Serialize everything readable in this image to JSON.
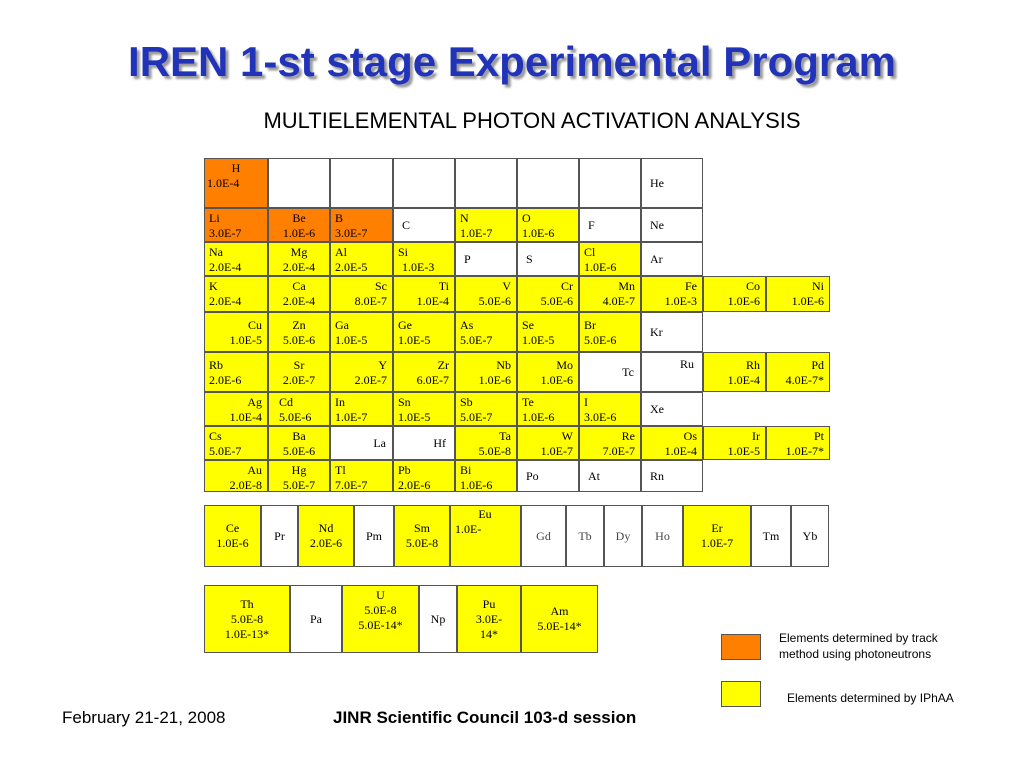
{
  "title": "IREN 1-st stage Experimental Program",
  "subtitle": "MULTIELEMENTAL PHOTON ACTIVATION ANALYSIS",
  "colors": {
    "track": "#ff8000",
    "iphaa": "#ffff00",
    "title": "#2133b8"
  },
  "elements": {
    "H": {
      "symbol": "H",
      "value": "1.0E-4"
    },
    "He": {
      "symbol": "He",
      "value": ""
    },
    "Li": {
      "symbol": "Li",
      "value": "3.0E-7"
    },
    "Be": {
      "symbol": "Be",
      "value": "1.0E-6"
    },
    "B": {
      "symbol": "B",
      "value": "3.0E-7"
    },
    "C": {
      "symbol": "C",
      "value": ""
    },
    "N": {
      "symbol": "N",
      "value": "1.0E-7"
    },
    "O": {
      "symbol": "O",
      "value": "1.0E-6"
    },
    "F": {
      "symbol": "F",
      "value": ""
    },
    "Ne": {
      "symbol": "Ne",
      "value": ""
    },
    "Na": {
      "symbol": "Na",
      "value": "2.0E-4"
    },
    "Mg": {
      "symbol": "Mg",
      "value": "2.0E-4"
    },
    "Al": {
      "symbol": "Al",
      "value": "2.0E-5"
    },
    "Si": {
      "symbol": "Si",
      "value": "1.0E-3"
    },
    "P": {
      "symbol": "P",
      "value": ""
    },
    "S": {
      "symbol": "S",
      "value": ""
    },
    "Cl": {
      "symbol": "Cl",
      "value": "1.0E-6"
    },
    "Ar": {
      "symbol": "Ar",
      "value": ""
    },
    "K": {
      "symbol": "K",
      "value": "2.0E-4"
    },
    "Ca": {
      "symbol": "Ca",
      "value": "2.0E-4"
    },
    "Sc": {
      "symbol": "Sc",
      "value": "8.0E-7"
    },
    "Ti": {
      "symbol": "Ti",
      "value": "1.0E-4"
    },
    "V": {
      "symbol": "V",
      "value": "5.0E-6"
    },
    "Cr": {
      "symbol": "Cr",
      "value": "5.0E-6"
    },
    "Mn": {
      "symbol": "Mn",
      "value": "4.0E-7"
    },
    "Fe": {
      "symbol": "Fe",
      "value": "1.0E-3"
    },
    "Co": {
      "symbol": "Co",
      "value": "1.0E-6"
    },
    "Ni": {
      "symbol": "Ni",
      "value": "1.0E-6"
    },
    "Cu": {
      "symbol": "Cu",
      "value": "1.0E-5"
    },
    "Zn": {
      "symbol": "Zn",
      "value": "5.0E-6"
    },
    "Ga": {
      "symbol": "Ga",
      "value": "1.0E-5"
    },
    "Ge": {
      "symbol": "Ge",
      "value": "1.0E-5"
    },
    "As": {
      "symbol": "As",
      "value": "5.0E-7"
    },
    "Se": {
      "symbol": "Se",
      "value": "1.0E-5"
    },
    "Br": {
      "symbol": "Br",
      "value": "5.0E-6"
    },
    "Kr": {
      "symbol": "Kr",
      "value": ""
    },
    "Rb": {
      "symbol": "Rb",
      "value": "2.0E-6"
    },
    "Sr": {
      "symbol": "Sr",
      "value": "2.0E-7"
    },
    "Y": {
      "symbol": "Y",
      "value": "2.0E-7"
    },
    "Zr": {
      "symbol": "Zr",
      "value": "6.0E-7"
    },
    "Nb": {
      "symbol": "Nb",
      "value": "1.0E-6"
    },
    "Mo": {
      "symbol": "Mo",
      "value": "1.0E-6"
    },
    "Tc": {
      "symbol": "Tc",
      "value": ""
    },
    "Ru": {
      "symbol": "Ru",
      "value": ""
    },
    "Rh": {
      "symbol": "Rh",
      "value": "1.0E-4"
    },
    "Pd": {
      "symbol": "Pd",
      "value": "4.0E-7*"
    },
    "Ag": {
      "symbol": "Ag",
      "value": "1.0E-4"
    },
    "Cd": {
      "symbol": "Cd",
      "value": "5.0E-6"
    },
    "In": {
      "symbol": "In",
      "value": "1.0E-7"
    },
    "Sn": {
      "symbol": "Sn",
      "value": "1.0E-5"
    },
    "Sb": {
      "symbol": "Sb",
      "value": "5.0E-7"
    },
    "Te": {
      "symbol": "Te",
      "value": "1.0E-6"
    },
    "I": {
      "symbol": "I",
      "value": "3.0E-6"
    },
    "Xe": {
      "symbol": "Xe",
      "value": ""
    },
    "Cs": {
      "symbol": "Cs",
      "value": "5.0E-7"
    },
    "Ba": {
      "symbol": "Ba",
      "value": "5.0E-6"
    },
    "La": {
      "symbol": "La",
      "value": ""
    },
    "Hf": {
      "symbol": "Hf",
      "value": ""
    },
    "Ta": {
      "symbol": "Ta",
      "value": "5.0E-8"
    },
    "W": {
      "symbol": "W",
      "value": "1.0E-7"
    },
    "Re": {
      "symbol": "Re",
      "value": "7.0E-7"
    },
    "Os": {
      "symbol": "Os",
      "value": "1.0E-4"
    },
    "Ir": {
      "symbol": "Ir",
      "value": "1.0E-5"
    },
    "Pt": {
      "symbol": "Pt",
      "value": "1.0E-7*"
    },
    "Au": {
      "symbol": "Au",
      "value": "2.0E-8"
    },
    "Hg": {
      "symbol": "Hg",
      "value": "5.0E-7"
    },
    "Tl": {
      "symbol": "Tl",
      "value": "7.0E-7"
    },
    "Pb": {
      "symbol": "Pb",
      "value": "2.0E-6"
    },
    "Bi": {
      "symbol": "Bi",
      "value": "1.0E-6"
    },
    "Po": {
      "symbol": "Po",
      "value": ""
    },
    "At": {
      "symbol": "At",
      "value": ""
    },
    "Rn": {
      "symbol": "Rn",
      "value": ""
    },
    "Ce": {
      "symbol": "Ce",
      "value": "1.0E-6"
    },
    "Pr": {
      "symbol": "Pr",
      "value": ""
    },
    "Nd": {
      "symbol": "Nd",
      "value": "2.0E-6"
    },
    "Pm": {
      "symbol": "Pm",
      "value": ""
    },
    "Sm": {
      "symbol": "Sm",
      "value": "5.0E-8"
    },
    "Eu": {
      "symbol": "Eu",
      "value": "1.0E-"
    },
    "Gd": {
      "symbol": "Gd",
      "value": ""
    },
    "Tb": {
      "symbol": "Tb",
      "value": ""
    },
    "Dy": {
      "symbol": "Dy",
      "value": ""
    },
    "Ho": {
      "symbol": "Ho",
      "value": ""
    },
    "Er": {
      "symbol": "Er",
      "value": "1.0E-7"
    },
    "Tm": {
      "symbol": "Tm",
      "value": ""
    },
    "Yb": {
      "symbol": "Yb",
      "value": ""
    },
    "Th": {
      "symbol": "Th",
      "value": "5.0E-8",
      "value2": "1.0E-13*"
    },
    "Pa": {
      "symbol": "Pa",
      "value": ""
    },
    "U": {
      "symbol": "U",
      "value": "5.0E-8",
      "value2": "5.0E-14*"
    },
    "Np": {
      "symbol": "Np",
      "value": ""
    },
    "Pu": {
      "symbol": "Pu",
      "value": "3.0E-",
      "value2": "14*"
    },
    "Am": {
      "symbol": "Am",
      "value": "5.0E-14*"
    }
  },
  "legend": {
    "track": "Elements determined by track method using photoneutrons",
    "iphaa": "Elements determined by IPhAA"
  },
  "footer": {
    "date": "February 21-21, 2008",
    "council": "JINR Scientific Council 103-d session"
  }
}
